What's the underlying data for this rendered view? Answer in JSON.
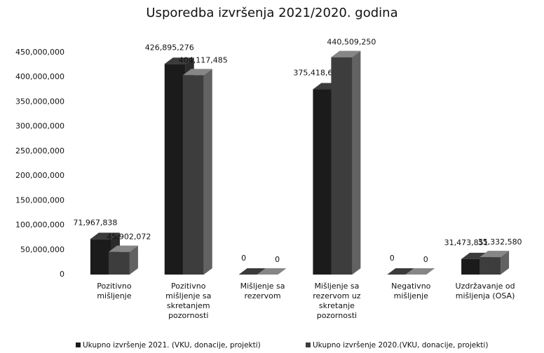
{
  "chart_data": {
    "type": "bar3d",
    "title": "Usporedba izvršenja 2021/2020. godina",
    "categories": [
      "Pozitivno mišljenje",
      "Pozitivno mišljenje sa skretanjem pozornosti",
      "Mišljenje sa rezervom",
      "Mišljenje sa rezervom uz skretanje pozornosti",
      "Negativno mišljenje",
      "Uzdržavanje od mišljenja (OSA)"
    ],
    "series": [
      {
        "name": "Ukupno izvršenje 2021. (VKU, donacije, projekti)",
        "color": "#1b1b1b",
        "values": [
          71967838,
          426895276,
          0,
          375418635,
          0,
          31473851
        ],
        "value_labels": [
          "71,967,838",
          "426,895,276",
          "0",
          "375,418,635",
          "0",
          "31,473,851"
        ]
      },
      {
        "name": "Ukupno izvršenje 2020.(VKU, donacije, projekti)",
        "color": "#3d3d3d",
        "values": [
          45902072,
          404117485,
          0,
          440509250,
          0,
          35332580
        ],
        "value_labels": [
          "45,902,072",
          "404,117,485",
          "0",
          "440,509,250",
          "0",
          "35,332,580"
        ]
      }
    ],
    "ylim": [
      0,
      450000000
    ],
    "yticks": [
      0,
      {
        "value": 50000000,
        "label": "50,000,000"
      },
      {
        "value": 100000000,
        "label": "100,000,000"
      },
      {
        "value": 150000000,
        "label": "150,000,000"
      },
      {
        "value": 200000000,
        "label": "200,000,000"
      },
      {
        "value": 250000000,
        "label": "250,000,000"
      },
      {
        "value": 300000000,
        "label": "300,000,000"
      },
      {
        "value": 350000000,
        "label": "350,000,000"
      },
      {
        "value": 400000000,
        "label": "400,000,000"
      },
      {
        "value": {
          "value": 450000000,
          "label": "450,000,000"
        },
        "label": "450,000,000"
      }
    ],
    "legend": "bottom"
  }
}
